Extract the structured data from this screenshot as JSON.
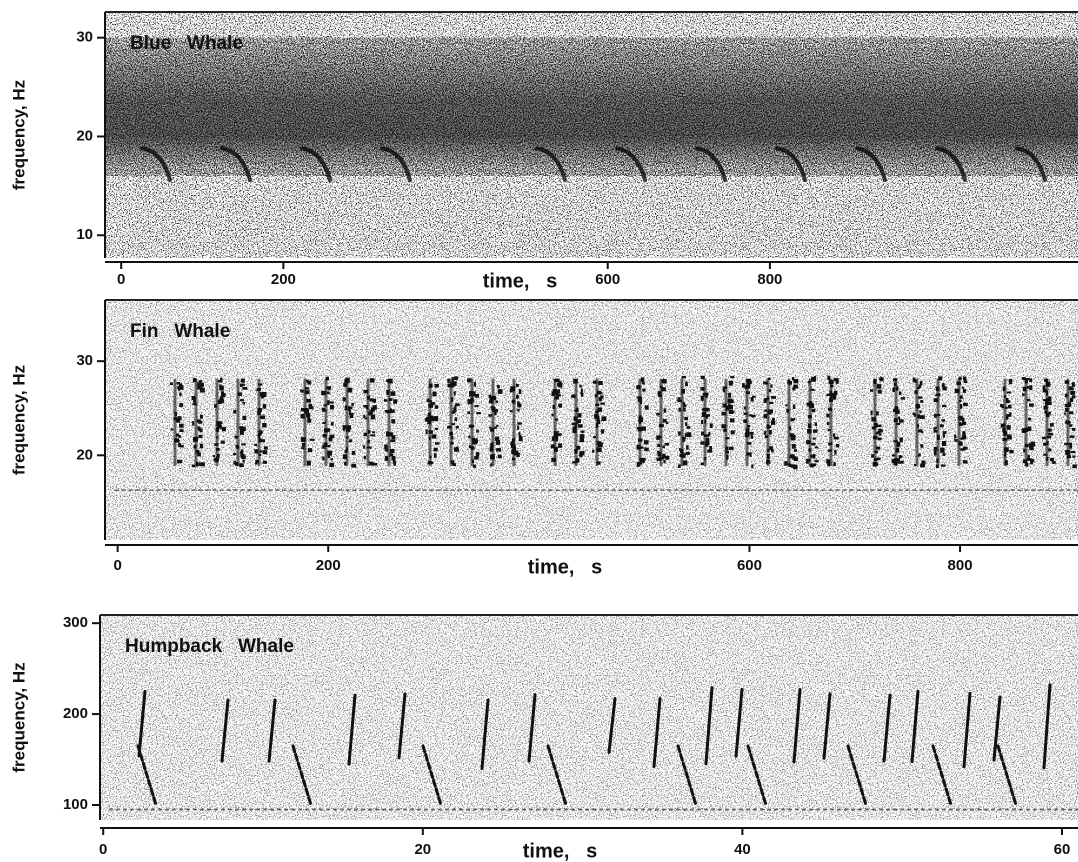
{
  "chart_data": [
    {
      "type": "spectrogram",
      "title": "Blue   Whale",
      "x_label": "time,   s",
      "y_label": "frequency, Hz",
      "xlim": [
        -20,
        1180
      ],
      "ylim": [
        7.7,
        32.6
      ],
      "xticks": [
        0,
        200,
        600,
        800
      ],
      "yticks": [
        10,
        20,
        30
      ]
    },
    {
      "type": "spectrogram",
      "title": "Fin   Whale",
      "x_label": "time,   s",
      "y_label": "frequency, Hz",
      "xlim": [
        -12,
        912
      ],
      "ylim": [
        11,
        36.5
      ],
      "xticks": [
        0,
        200,
        600,
        800
      ],
      "yticks": [
        20,
        30
      ]
    },
    {
      "type": "spectrogram",
      "title": "Humpback   Whale",
      "x_label": "time,   s",
      "y_label": "frequency, Hz",
      "xlim": [
        -0.2,
        61
      ],
      "ylim": [
        83.5,
        309
      ],
      "xticks": [
        0,
        20,
        40,
        60
      ],
      "yticks": [
        100,
        200,
        300
      ]
    }
  ]
}
